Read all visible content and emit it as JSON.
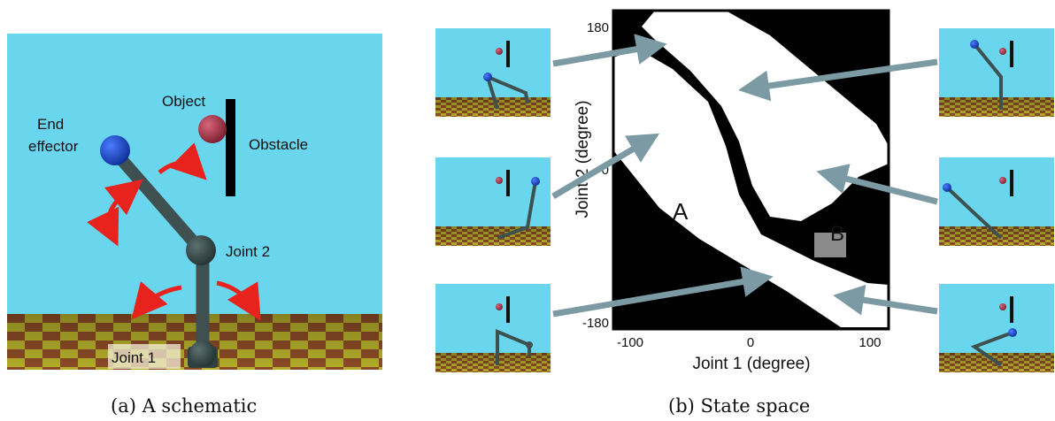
{
  "panel_a": {
    "labels": {
      "object": "Object",
      "obstacle": "Obstacle",
      "end_effector_line1": "End",
      "end_effector_line2": "effector",
      "joint2": "Joint 2",
      "joint1": "Joint 1"
    },
    "caption": "(a)  A schematic",
    "colors": {
      "sky": "#6ad6ee",
      "floor_a": "#8a4a26",
      "floor_b": "#b3ad2a",
      "link": "#3f5050",
      "end_effector": "#1d4fd3",
      "object": "#b03a4c",
      "obstacle": "#000000",
      "arrow": "#e8231e"
    }
  },
  "panel_b": {
    "y_axis": {
      "label": "Joint 2 (degree)",
      "ticks": [
        "180",
        "0",
        "-180"
      ]
    },
    "x_axis": {
      "label": "Joint 1 (degree)",
      "ticks": [
        "-100",
        "0",
        "100"
      ]
    },
    "region_labels": {
      "a": "A",
      "b": "B"
    },
    "caption": "(b)  State space",
    "colors": {
      "free": "#ffffff",
      "occupied": "#000000",
      "region_b": "#8a8a8a",
      "arrow": "#7c9aa4"
    }
  }
}
